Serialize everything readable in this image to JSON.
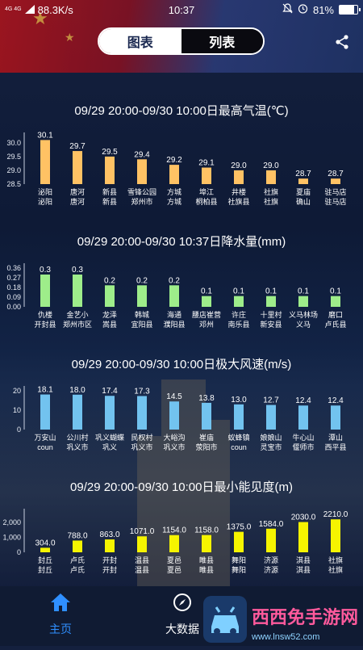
{
  "status_bar": {
    "net_label": "4G 4G",
    "speed": "88.3K/s",
    "time": "10:37",
    "battery": "81%",
    "battery_level": 0.81
  },
  "segment": {
    "chart_label": "图表",
    "list_label": "列表"
  },
  "bottom_nav": {
    "home": "主页",
    "bigdata": "大数据"
  },
  "watermark": {
    "text": "西西免手游网",
    "sub": "www.lnsw52.com"
  },
  "chart_data": [
    {
      "type": "bar",
      "title": "09/29 20:00-09/30 10:00日最高气温(℃)",
      "color": "#ffc264",
      "categories": [
        [
          "泌阳",
          "泌阳"
        ],
        [
          "唐河",
          "唐河"
        ],
        [
          "新县",
          "新县"
        ],
        [
          "雪锋公园",
          "郑州市"
        ],
        [
          "方城",
          "方城"
        ],
        [
          "埠江",
          "桐柏县"
        ],
        [
          "井楼",
          "社旗县"
        ],
        [
          "社旗",
          "社旗"
        ],
        [
          "夏庙",
          "确山"
        ],
        [
          "驻马店",
          "驻马店"
        ]
      ],
      "values": [
        30.1,
        29.7,
        29.5,
        29.4,
        29.2,
        29.1,
        29.0,
        29.0,
        28.7,
        28.7
      ],
      "value_labels": [
        "30.1",
        "29.7",
        "29.5",
        "29.4",
        "29.2",
        "29.1",
        "29.0",
        "29.0",
        "28.7",
        "28.7"
      ],
      "yticks": [
        "30.0",
        "29.5",
        "29.0",
        "28.5"
      ],
      "ytick_values": [
        30.0,
        29.5,
        29.0,
        28.5
      ],
      "ylim": [
        28.5,
        30.2
      ]
    },
    {
      "type": "bar",
      "title": "09/29 20:00-09/30 10:37日降水量(mm)",
      "color": "#9eed8a",
      "categories": [
        [
          "仇楼",
          "开封县"
        ],
        [
          "金艺小",
          "郑州市区"
        ],
        [
          "龙泽",
          "嵩县"
        ],
        [
          "韩城",
          "宜阳县"
        ],
        [
          "海通",
          "濮阳县"
        ],
        [
          "腰店崔营",
          "邓州"
        ],
        [
          "许庄",
          "南乐县"
        ],
        [
          "十里村",
          "新安县"
        ],
        [
          "义马林场",
          "义马"
        ],
        [
          "磨口",
          "卢氏县"
        ]
      ],
      "values": [
        0.3,
        0.3,
        0.2,
        0.2,
        0.2,
        0.1,
        0.1,
        0.1,
        0.1,
        0.1
      ],
      "value_labels": [
        "0.3",
        "0.3",
        "0.2",
        "0.2",
        "0.2",
        "0.1",
        "0.1",
        "0.1",
        "0.1",
        "0.1"
      ],
      "yticks": [
        "0.36",
        "0.27",
        "0.18",
        "0.09",
        "0.00"
      ],
      "ytick_values": [
        0.36,
        0.27,
        0.18,
        0.09,
        0.0
      ],
      "ylim": [
        0,
        0.36
      ]
    },
    {
      "type": "bar",
      "title": "09/29 20:00-09/30 10:00日极大风速(m/s)",
      "color": "#72c3ef",
      "categories": [
        [
          "万安山",
          "coun"
        ],
        [
          "公川村",
          "巩义市"
        ],
        [
          "巩义蝴蝶",
          "巩义"
        ],
        [
          "民权村",
          "巩义市"
        ],
        [
          "大峪沟",
          "巩义市"
        ],
        [
          "崔庙",
          "荥阳市"
        ],
        [
          "蚁蜂镇",
          "coun"
        ],
        [
          "娘娘山",
          "灵宝市"
        ],
        [
          "牛心山",
          "偃师市"
        ],
        [
          "潭山",
          "西平县"
        ]
      ],
      "values": [
        18.1,
        18.0,
        17.4,
        17.3,
        14.5,
        13.8,
        13.0,
        12.7,
        12.4,
        12.4
      ],
      "value_labels": [
        "18.1",
        "18.0",
        "17.4",
        "17.3",
        "14.5",
        "13.8",
        "13.0",
        "12.7",
        "12.4",
        "12.4"
      ],
      "yticks": [
        "20",
        "10",
        "0"
      ],
      "ytick_values": [
        20,
        10,
        0
      ],
      "ylim": [
        0,
        20
      ]
    },
    {
      "type": "bar",
      "title": "09/29 20:00-09/30 10:00日最小能见度(m)",
      "color": "#f6f400",
      "categories": [
        [
          "封丘",
          "封丘"
        ],
        [
          "卢氏",
          "卢氏"
        ],
        [
          "开封",
          "开封"
        ],
        [
          "温县",
          "温县"
        ],
        [
          "夏邑",
          "夏邑"
        ],
        [
          "睢县",
          "睢县"
        ],
        [
          "舞阳",
          "舞阳"
        ],
        [
          "济源",
          "济源"
        ],
        [
          "淇县",
          "淇县"
        ],
        [
          "社旗",
          "社旗"
        ]
      ],
      "values": [
        304.0,
        788.0,
        863.0,
        1071.0,
        1154.0,
        1158.0,
        1375.0,
        1584.0,
        2030.0,
        2210.0
      ],
      "value_labels": [
        "304.0",
        "788.0",
        "863.0",
        "1071.0",
        "1154.0",
        "1158.0",
        "1375.0",
        "1584.0",
        "2030.0",
        "2210.0"
      ],
      "yticks": [
        "2,000",
        "1,000",
        "0"
      ],
      "ytick_values": [
        2000,
        1000,
        0
      ],
      "ylim": [
        0,
        2600
      ]
    }
  ]
}
